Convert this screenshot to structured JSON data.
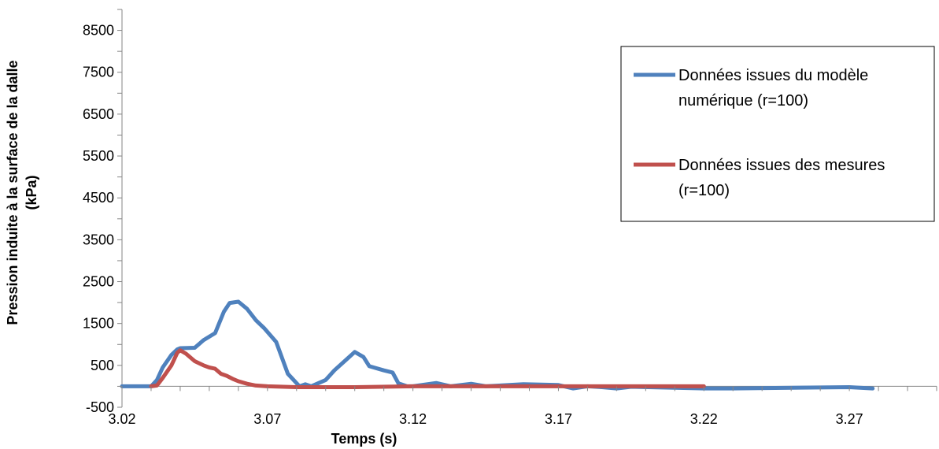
{
  "chart_data": {
    "type": "line",
    "title": "",
    "xlabel": "Temps (s)",
    "ylabel_lines": [
      "Pression induite à la surface de la dalle",
      "(kPa)"
    ],
    "xlim": [
      3.02,
      3.3
    ],
    "ylim": [
      -500,
      9000
    ],
    "x_ticks": [
      3.02,
      3.07,
      3.12,
      3.17,
      3.22,
      3.27
    ],
    "x_tick_labels": [
      "3.02",
      "3.07",
      "3.12",
      "3.17",
      "3.22",
      "3.27"
    ],
    "y_ticks": [
      -500,
      500,
      1500,
      2500,
      3500,
      4500,
      5500,
      6500,
      7500,
      8500
    ],
    "y_tick_labels": [
      "-500",
      "500",
      "1500",
      "2500",
      "3500",
      "4500",
      "5500",
      "6500",
      "7500",
      "8500"
    ],
    "grid": false,
    "legend_position": "top-right",
    "series": [
      {
        "name": "Données issues du modèle numérique (r=100)",
        "legend_lines": [
          "Données issues du modèle",
          "numérique (r=100)"
        ],
        "color": "#4F81BD",
        "points": [
          [
            3.02,
            0
          ],
          [
            3.025,
            0
          ],
          [
            3.028,
            0
          ],
          [
            3.03,
            0
          ],
          [
            3.032,
            150
          ],
          [
            3.034,
            450
          ],
          [
            3.037,
            750
          ],
          [
            3.039,
            880
          ],
          [
            3.04,
            910
          ],
          [
            3.045,
            920
          ],
          [
            3.048,
            1100
          ],
          [
            3.052,
            1270
          ],
          [
            3.055,
            1780
          ],
          [
            3.057,
            1990
          ],
          [
            3.06,
            2020
          ],
          [
            3.063,
            1850
          ],
          [
            3.066,
            1580
          ],
          [
            3.069,
            1380
          ],
          [
            3.073,
            1060
          ],
          [
            3.077,
            300
          ],
          [
            3.081,
            0
          ],
          [
            3.083,
            50
          ],
          [
            3.085,
            0
          ],
          [
            3.09,
            150
          ],
          [
            3.093,
            380
          ],
          [
            3.097,
            630
          ],
          [
            3.1,
            820
          ],
          [
            3.103,
            700
          ],
          [
            3.105,
            480
          ],
          [
            3.11,
            380
          ],
          [
            3.113,
            330
          ],
          [
            3.115,
            70
          ],
          [
            3.118,
            0
          ],
          [
            3.12,
            0
          ],
          [
            3.128,
            80
          ],
          [
            3.133,
            0
          ],
          [
            3.14,
            60
          ],
          [
            3.145,
            0
          ],
          [
            3.158,
            50
          ],
          [
            3.17,
            30
          ],
          [
            3.175,
            -50
          ],
          [
            3.18,
            0
          ],
          [
            3.185,
            -20
          ],
          [
            3.19,
            -50
          ],
          [
            3.195,
            -10
          ],
          [
            3.22,
            -50
          ],
          [
            3.23,
            -50
          ],
          [
            3.27,
            -20
          ],
          [
            3.278,
            -50
          ]
        ]
      },
      {
        "name": "Données issues des mesures (r=100)",
        "legend_lines": [
          "Données issues des mesures",
          "(r=100)"
        ],
        "color": "#C0504D",
        "points": [
          [
            3.03,
            0
          ],
          [
            3.032,
            20
          ],
          [
            3.034,
            200
          ],
          [
            3.037,
            500
          ],
          [
            3.039,
            800
          ],
          [
            3.04,
            860
          ],
          [
            3.042,
            780
          ],
          [
            3.045,
            600
          ],
          [
            3.048,
            500
          ],
          [
            3.05,
            450
          ],
          [
            3.052,
            420
          ],
          [
            3.054,
            300
          ],
          [
            3.056,
            250
          ],
          [
            3.058,
            180
          ],
          [
            3.06,
            120
          ],
          [
            3.063,
            60
          ],
          [
            3.066,
            20
          ],
          [
            3.07,
            0
          ],
          [
            3.08,
            -20
          ],
          [
            3.1,
            -20
          ],
          [
            3.12,
            0
          ],
          [
            3.15,
            0
          ],
          [
            3.18,
            0
          ],
          [
            3.2,
            0
          ],
          [
            3.22,
            0
          ]
        ]
      }
    ]
  }
}
